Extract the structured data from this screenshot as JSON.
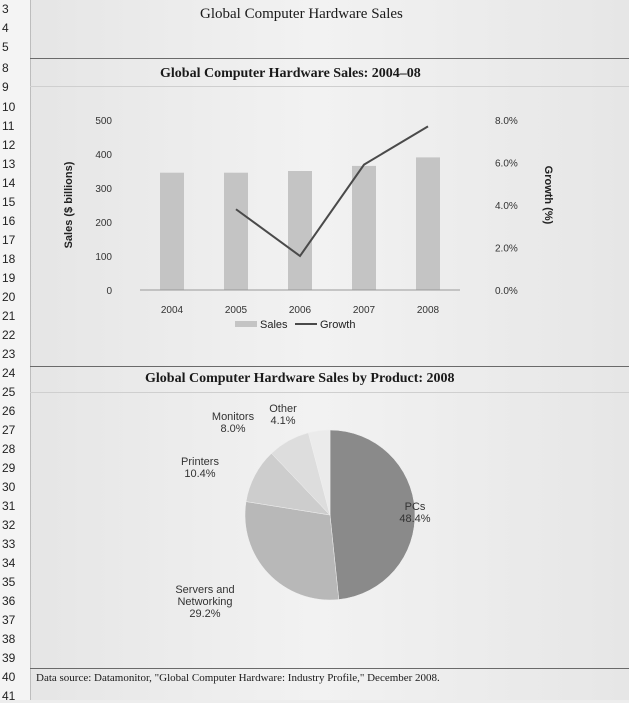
{
  "row_numbers": [
    "3",
    "4",
    "5",
    "8",
    "9",
    "10",
    "11",
    "12",
    "13",
    "14",
    "15",
    "16",
    "17",
    "18",
    "19",
    "20",
    "21",
    "22",
    "23",
    "24",
    "25",
    "26",
    "27",
    "28",
    "29",
    "30",
    "31",
    "32",
    "33",
    "34",
    "35",
    "36",
    "37",
    "38",
    "39",
    "40",
    "41"
  ],
  "sheet_title": "Global Computer Hardware Sales",
  "chart_data": [
    {
      "type": "bar",
      "title": "Global Computer Hardware Sales: 2004–08",
      "categories": [
        "2004",
        "2005",
        "2006",
        "2007",
        "2008"
      ],
      "series": [
        {
          "name": "Sales",
          "type": "bar",
          "axis": "left",
          "values": [
            345,
            345,
            350,
            365,
            390
          ],
          "color": "#c4c4c4"
        },
        {
          "name": "Growth",
          "type": "line",
          "axis": "right",
          "values": [
            null,
            3.8,
            1.6,
            5.9,
            7.7
          ],
          "color": "#4a4a4a"
        }
      ],
      "ylabel": "Sales ($ billions)",
      "ylim": [
        0,
        500
      ],
      "yticks": [
        "0",
        "100",
        "200",
        "300",
        "400",
        "500"
      ],
      "y2label": "Growth (%)",
      "y2lim": [
        0,
        8
      ],
      "y2ticks": [
        "0.0%",
        "2.0%",
        "4.0%",
        "6.0%",
        "8.0%"
      ],
      "legend_position": "bottom",
      "grid": false
    },
    {
      "type": "pie",
      "title": "Global Computer Hardware Sales by Product: 2008",
      "slices": [
        {
          "label": "PCs",
          "value": 48.4,
          "value_label": "48.4%",
          "color": "#8a8a8a"
        },
        {
          "label": "Servers and Networking",
          "label_lines": [
            "Servers and",
            "Networking"
          ],
          "value": 29.2,
          "value_label": "29.2%",
          "color": "#b8b8b8"
        },
        {
          "label": "Printers",
          "value": 10.4,
          "value_label": "10.4%",
          "color": "#cdcdcd"
        },
        {
          "label": "Monitors",
          "value": 8.0,
          "value_label": "8.0%",
          "color": "#dddddd"
        },
        {
          "label": "Other",
          "value": 4.1,
          "value_label": "4.1%",
          "color": "#ebebeb"
        }
      ]
    }
  ],
  "footnote": "Data source: Datamonitor, \"Global Computer Hardware: Industry Profile,\" December 2008."
}
